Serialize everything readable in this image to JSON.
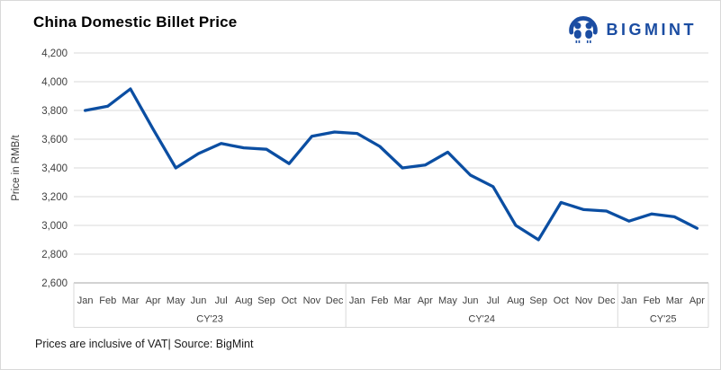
{
  "title": "China Domestic Billet Price",
  "logo": {
    "text": "BIGMINT",
    "icon": "bigmint-twin-figures-icon",
    "color": "#1b4da2"
  },
  "footer": "Prices are inclusive of VAT| Source: BigMint",
  "colors": {
    "line": "#0b4ea2",
    "grid": "#d9d9d9",
    "axis": "#a6a6a6",
    "tick_text": "#404040",
    "logo_blue": "#1b4da2"
  },
  "chart_data": {
    "type": "line",
    "title": "China Domestic Billet Price",
    "xlabel": "",
    "ylabel": "Price in RMB/t",
    "ylim": [
      2600,
      4200
    ],
    "ytick_step": 200,
    "grid": true,
    "legend": false,
    "year_groups": [
      {
        "label": "CY'23",
        "months": [
          "Jan",
          "Feb",
          "Mar",
          "Apr",
          "May",
          "Jun",
          "Jul",
          "Aug",
          "Sep",
          "Oct",
          "Nov",
          "Dec"
        ]
      },
      {
        "label": "CY'24",
        "months": [
          "Jan",
          "Feb",
          "Mar",
          "Apr",
          "May",
          "Jun",
          "Jul",
          "Aug",
          "Sep",
          "Oct",
          "Nov",
          "Dec"
        ]
      },
      {
        "label": "CY'25",
        "months": [
          "Jan",
          "Feb",
          "Mar",
          "Apr"
        ]
      }
    ],
    "series": [
      {
        "name": "China domestic billet price (RMB/t)",
        "values": [
          3800,
          3830,
          3950,
          3670,
          3400,
          3500,
          3570,
          3540,
          3530,
          3430,
          3620,
          3650,
          3640,
          3550,
          3400,
          3420,
          3510,
          3350,
          3270,
          3000,
          2900,
          3160,
          3110,
          3100,
          3030,
          3080,
          3060,
          2980
        ]
      }
    ]
  }
}
